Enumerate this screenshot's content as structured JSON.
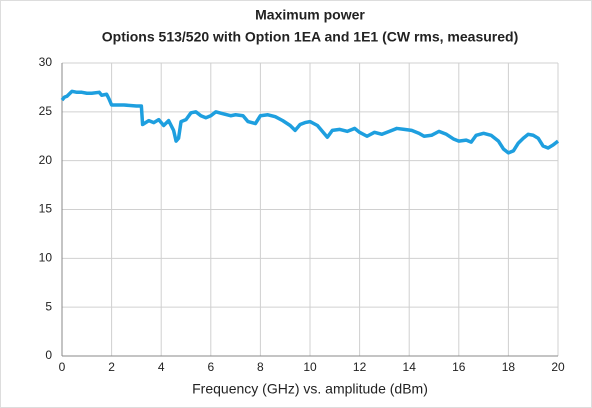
{
  "chart_data": {
    "type": "line",
    "title": "Maximum power",
    "subtitle": "Options 513/520 with Option 1EA and 1E1 (CW rms, measured)",
    "x_label": "Frequency (GHz) vs. amplitude (dBm)",
    "xlim": [
      0,
      20
    ],
    "xticks": [
      0,
      2,
      4,
      6,
      8,
      10,
      12,
      14,
      16,
      18,
      20
    ],
    "ylim": [
      0,
      30
    ],
    "yticks": [
      0,
      5,
      10,
      15,
      20,
      25,
      30
    ],
    "grid": true,
    "x": [
      0,
      0.1,
      0.2,
      0.4,
      0.6,
      0.8,
      1.0,
      1.2,
      1.5,
      1.6,
      1.8,
      1.9,
      2.0,
      2.5,
      3.0,
      3.2,
      3.25,
      3.5,
      3.7,
      3.9,
      4.1,
      4.3,
      4.5,
      4.6,
      4.7,
      4.8,
      5.0,
      5.2,
      5.4,
      5.6,
      5.8,
      6.0,
      6.2,
      6.5,
      6.8,
      7.0,
      7.3,
      7.5,
      7.8,
      8.0,
      8.3,
      8.6,
      8.9,
      9.2,
      9.4,
      9.6,
      9.8,
      10.0,
      10.3,
      10.5,
      10.7,
      10.9,
      11.2,
      11.5,
      11.8,
      12.0,
      12.3,
      12.6,
      12.9,
      13.2,
      13.5,
      13.8,
      14.1,
      14.4,
      14.6,
      14.9,
      15.2,
      15.5,
      15.8,
      16.0,
      16.3,
      16.5,
      16.7,
      17.0,
      17.3,
      17.6,
      17.8,
      18.0,
      18.2,
      18.4,
      18.6,
      18.8,
      19.0,
      19.2,
      19.4,
      19.6,
      19.8,
      20.0
    ],
    "series": [
      {
        "color": "#1e9fdf",
        "values": [
          26.2,
          26.5,
          26.6,
          27.1,
          27.0,
          27.0,
          26.9,
          26.9,
          27.0,
          26.7,
          26.8,
          26.3,
          25.7,
          25.7,
          25.6,
          25.6,
          23.7,
          24.1,
          23.9,
          24.2,
          23.6,
          24.1,
          23.1,
          22.0,
          22.3,
          24.0,
          24.2,
          24.9,
          25.0,
          24.6,
          24.4,
          24.6,
          25.0,
          24.8,
          24.6,
          24.7,
          24.6,
          24.0,
          23.8,
          24.6,
          24.7,
          24.5,
          24.1,
          23.6,
          23.1,
          23.7,
          23.9,
          24.0,
          23.6,
          23.0,
          22.4,
          23.1,
          23.2,
          23.0,
          23.3,
          22.9,
          22.5,
          22.9,
          22.7,
          23.0,
          23.3,
          23.2,
          23.1,
          22.8,
          22.5,
          22.6,
          23.0,
          22.7,
          22.2,
          22.0,
          22.1,
          21.9,
          22.6,
          22.8,
          22.6,
          22.0,
          21.2,
          20.8,
          21.0,
          21.8,
          22.3,
          22.7,
          22.6,
          22.3,
          21.5,
          21.3,
          21.6,
          22.0
        ]
      }
    ]
  }
}
